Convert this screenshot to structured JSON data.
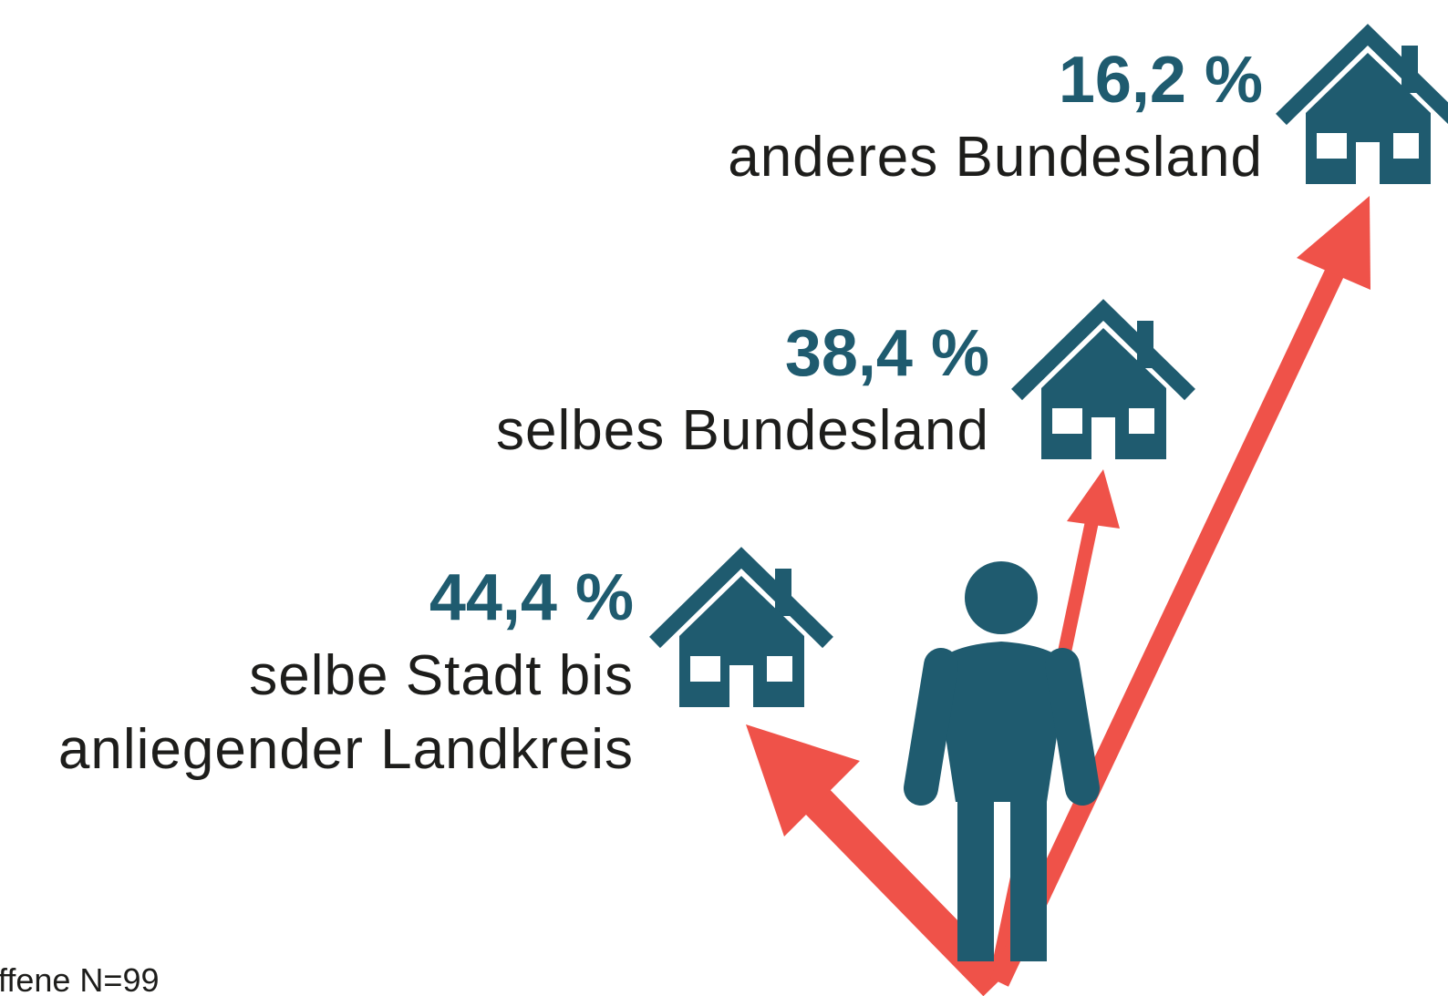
{
  "items": [
    {
      "value": "16,2 %",
      "label_lines": [
        "anderes Bundesland"
      ]
    },
    {
      "value": "38,4 %",
      "label_lines": [
        "selbes Bundesland"
      ]
    },
    {
      "value": "44,4 %",
      "label_lines": [
        "selbe Stadt bis",
        "anliegender Landkreis"
      ]
    }
  ],
  "footnote": "ffene N=99"
}
